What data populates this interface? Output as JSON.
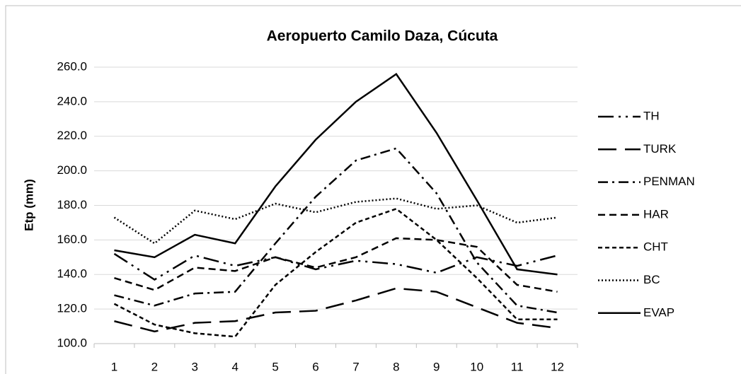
{
  "chart_data": {
    "type": "line",
    "title": "Aeropuerto Camilo Daza, Cúcuta",
    "y_label": "Etp (mm)",
    "categories": [
      "1",
      "2",
      "3",
      "4",
      "5",
      "6",
      "7",
      "8",
      "9",
      "10",
      "11",
      "12"
    ],
    "series": [
      {
        "name": "TH",
        "color": "#000000",
        "dash": "22,7,3,7,3,7",
        "values": [
          152,
          137,
          151,
          145,
          150,
          143,
          148,
          146,
          141,
          150,
          145,
          151
        ]
      },
      {
        "name": "TURK",
        "color": "#000000",
        "dash": "26,12",
        "values": [
          113,
          107,
          112,
          113,
          118,
          119,
          125,
          132,
          130,
          121,
          112,
          109
        ]
      },
      {
        "name": "PENMAN",
        "color": "#000000",
        "dash": "14,6,3,6",
        "values": [
          128,
          122,
          129,
          130,
          158,
          185,
          206,
          213,
          187,
          147,
          122,
          118
        ]
      },
      {
        "name": "HAR",
        "color": "#000000",
        "dash": "10,6",
        "values": [
          138,
          131,
          144,
          142,
          150,
          144,
          150,
          161,
          160,
          156,
          134,
          130
        ]
      },
      {
        "name": "CHT",
        "color": "#000000",
        "dash": "6,4",
        "values": [
          123,
          111,
          106,
          104,
          134,
          153,
          170,
          178,
          160,
          138,
          114,
          114
        ]
      },
      {
        "name": "BC",
        "color": "#000000",
        "dash": "2,3",
        "values": [
          173,
          158,
          177,
          172,
          181,
          176,
          182,
          184,
          178,
          180,
          170,
          173
        ]
      },
      {
        "name": "EVAP",
        "color": "#000000",
        "dash": "none",
        "values": [
          154,
          150,
          163,
          158,
          191,
          218,
          240,
          256,
          222,
          183,
          143,
          140
        ]
      }
    ],
    "ylim": [
      100,
      260
    ],
    "yticks": [
      {
        "value": 100,
        "label": "100.0"
      },
      {
        "value": 120,
        "label": "120.0"
      },
      {
        "value": 140,
        "label": "140.0"
      },
      {
        "value": 160,
        "label": "160.0"
      },
      {
        "value": 180,
        "label": "180.0"
      },
      {
        "value": 200,
        "label": "200.0"
      },
      {
        "value": 220,
        "label": "220.0"
      },
      {
        "value": 240,
        "label": "240.0"
      },
      {
        "value": 260,
        "label": "260.0"
      }
    ],
    "grid": true,
    "legend": "right"
  }
}
